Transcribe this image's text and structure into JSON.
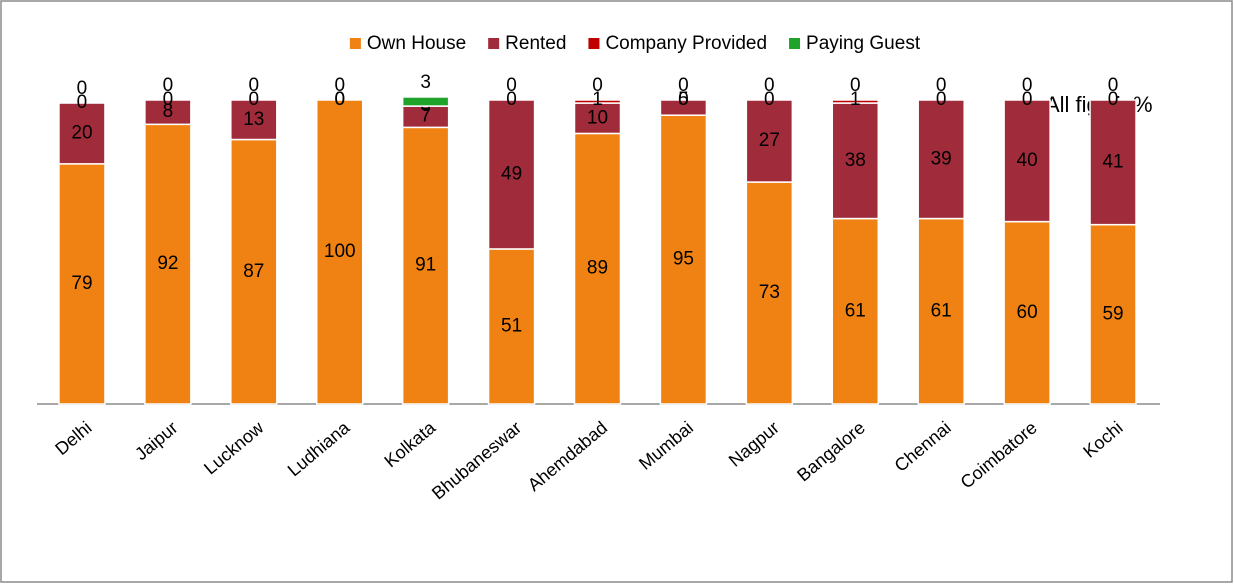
{
  "chart_data": {
    "type": "stacked_bar",
    "annotation": "All figs in%",
    "categories": [
      "Delhi",
      "Jaipur",
      "Lucknow",
      "Ludhiana",
      "Kolkata",
      "Bhubaneswar",
      "Ahemdabad",
      "Mumbai",
      "Nagpur",
      "Bangalore",
      "Chennai",
      "Coimbatore",
      "Kochi"
    ],
    "series": [
      {
        "name": "Own House",
        "color": "#ef8212",
        "values": [
          79,
          92,
          87,
          100,
          91,
          51,
          89,
          95,
          73,
          61,
          61,
          60,
          59
        ]
      },
      {
        "name": "Rented",
        "color": "#a02b3b",
        "values": [
          20,
          8,
          13,
          0,
          7,
          49,
          10,
          5,
          27,
          38,
          39,
          40,
          41
        ]
      },
      {
        "name": "Company Provided",
        "color": "#c00000",
        "values": [
          0,
          0,
          0,
          0,
          0,
          0,
          1,
          0,
          0,
          1,
          0,
          0,
          0
        ]
      },
      {
        "name": "Paying Guest",
        "color": "#1fa32a",
        "values": [
          0,
          0,
          0,
          0,
          3,
          0,
          0,
          0,
          0,
          0,
          0,
          0,
          0
        ]
      }
    ],
    "ylim": [
      0,
      100
    ]
  }
}
